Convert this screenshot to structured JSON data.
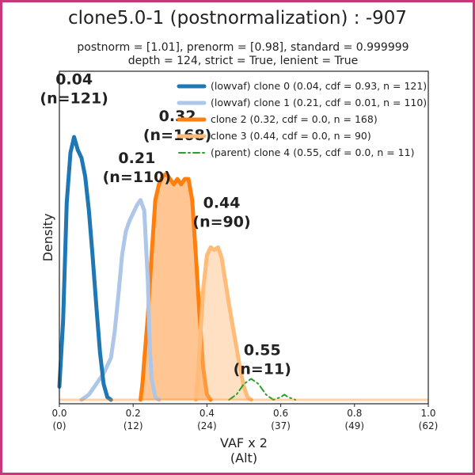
{
  "colors": {
    "frame": "#c8377a",
    "clone0": "#1f77b4",
    "clone1": "#aec7e8",
    "clone2": "#ff7f0e",
    "clone3": "#ffbb78",
    "clone4": "#2ca02c"
  },
  "chart_data": {
    "type": "area",
    "title": "clone5.0-1 (postnormalization) : -907",
    "subtitle_line1": "postnorm = [1.01], prenorm = [0.98], standard = 0.999999",
    "subtitle_line2": "depth = 124, strict = True, lenient = True",
    "xlabel_line1": "VAF x 2",
    "xlabel_line2": "(Alt)",
    "ylabel": "Density",
    "xlim": [
      0,
      1
    ],
    "grid": false,
    "legend_position": "top-right",
    "x_ticks": [
      {
        "value": 0.0,
        "label": "0.0",
        "sub": "(0)"
      },
      {
        "value": 0.2,
        "label": "0.2",
        "sub": "(12)"
      },
      {
        "value": 0.4,
        "label": "0.4",
        "sub": "(24)"
      },
      {
        "value": 0.6,
        "label": "0.6",
        "sub": "(37)"
      },
      {
        "value": 0.8,
        "label": "0.8",
        "sub": "(49)"
      },
      {
        "value": 1.0,
        "label": "1.0",
        "sub": "(62)"
      }
    ],
    "series": [
      {
        "name": "(lowvaf) clone 0 (0.04, cdf = 0.93, n = 121)",
        "color_key": "clone0",
        "style": "line",
        "peak_label": "0.04",
        "n_label": "(n=121)",
        "label_x": 0.04,
        "label_y": 1.2,
        "points": [
          [
            0,
            0.05
          ],
          [
            0.01,
            0.3
          ],
          [
            0.02,
            0.75
          ],
          [
            0.03,
            0.94
          ],
          [
            0.04,
            1.0
          ],
          [
            0.05,
            0.95
          ],
          [
            0.06,
            0.92
          ],
          [
            0.07,
            0.85
          ],
          [
            0.08,
            0.72
          ],
          [
            0.09,
            0.55
          ],
          [
            0.1,
            0.36
          ],
          [
            0.11,
            0.18
          ],
          [
            0.12,
            0.06
          ],
          [
            0.13,
            0.01
          ],
          [
            0.14,
            0.0
          ]
        ]
      },
      {
        "name": "(lowvaf) clone 1 (0.21, cdf = 0.01, n = 110)",
        "color_key": "clone1",
        "style": "line",
        "peak_label": "0.21",
        "n_label": "(n=110)",
        "label_x": 0.21,
        "label_y": 0.9,
        "points": [
          [
            0.06,
            0.0
          ],
          [
            0.08,
            0.02
          ],
          [
            0.1,
            0.06
          ],
          [
            0.12,
            0.1
          ],
          [
            0.14,
            0.16
          ],
          [
            0.15,
            0.26
          ],
          [
            0.16,
            0.4
          ],
          [
            0.17,
            0.55
          ],
          [
            0.18,
            0.64
          ],
          [
            0.19,
            0.68
          ],
          [
            0.2,
            0.71
          ],
          [
            0.21,
            0.74
          ],
          [
            0.22,
            0.76
          ],
          [
            0.23,
            0.72
          ],
          [
            0.24,
            0.45
          ],
          [
            0.245,
            0.2
          ],
          [
            0.25,
            0.08
          ],
          [
            0.26,
            0.01
          ],
          [
            0.27,
            0.0
          ]
        ]
      },
      {
        "name": "clone 2 (0.32, cdf = 0.0, n = 168)",
        "color_key": "clone2",
        "style": "area",
        "peak_label": "0.32",
        "n_label": "(n=168)",
        "label_x": 0.32,
        "label_y": 1.06,
        "points": [
          [
            0.22,
            0.0
          ],
          [
            0.225,
            0.06
          ],
          [
            0.23,
            0.15
          ],
          [
            0.24,
            0.32
          ],
          [
            0.25,
            0.55
          ],
          [
            0.26,
            0.76
          ],
          [
            0.27,
            0.82
          ],
          [
            0.28,
            0.85
          ],
          [
            0.29,
            0.86
          ],
          [
            0.3,
            0.84
          ],
          [
            0.31,
            0.82
          ],
          [
            0.32,
            0.84
          ],
          [
            0.33,
            0.82
          ],
          [
            0.34,
            0.84
          ],
          [
            0.35,
            0.84
          ],
          [
            0.36,
            0.76
          ],
          [
            0.37,
            0.55
          ],
          [
            0.38,
            0.32
          ],
          [
            0.39,
            0.12
          ],
          [
            0.4,
            0.02
          ],
          [
            0.41,
            0.0
          ]
        ]
      },
      {
        "name": "clone 3 (0.44, cdf = 0.0, n = 90)",
        "color_key": "clone3",
        "style": "area",
        "peak_label": "0.44",
        "n_label": "(n=90)",
        "label_x": 0.44,
        "label_y": 0.73,
        "points": [
          [
            0.37,
            0.0
          ],
          [
            0.375,
            0.08
          ],
          [
            0.38,
            0.2
          ],
          [
            0.39,
            0.42
          ],
          [
            0.4,
            0.55
          ],
          [
            0.41,
            0.58
          ],
          [
            0.42,
            0.57
          ],
          [
            0.43,
            0.58
          ],
          [
            0.44,
            0.54
          ],
          [
            0.45,
            0.45
          ],
          [
            0.46,
            0.36
          ],
          [
            0.47,
            0.28
          ],
          [
            0.48,
            0.2
          ],
          [
            0.49,
            0.12
          ],
          [
            0.5,
            0.05
          ],
          [
            0.51,
            0.01
          ],
          [
            0.52,
            0.0
          ]
        ]
      },
      {
        "name": "(parent) clone 4 (0.55, cdf = 0.0, n = 11)",
        "color_key": "clone4",
        "style": "dashdot",
        "peak_label": "0.55",
        "n_label": "(n=11)",
        "label_x": 0.55,
        "label_y": 0.17,
        "points": [
          [
            0.46,
            0.0
          ],
          [
            0.48,
            0.02
          ],
          [
            0.5,
            0.06
          ],
          [
            0.52,
            0.08
          ],
          [
            0.54,
            0.06
          ],
          [
            0.56,
            0.02
          ],
          [
            0.58,
            0.0
          ],
          [
            0.6,
            0.01
          ],
          [
            0.61,
            0.02
          ],
          [
            0.62,
            0.01
          ],
          [
            0.64,
            0.0
          ]
        ]
      }
    ]
  }
}
